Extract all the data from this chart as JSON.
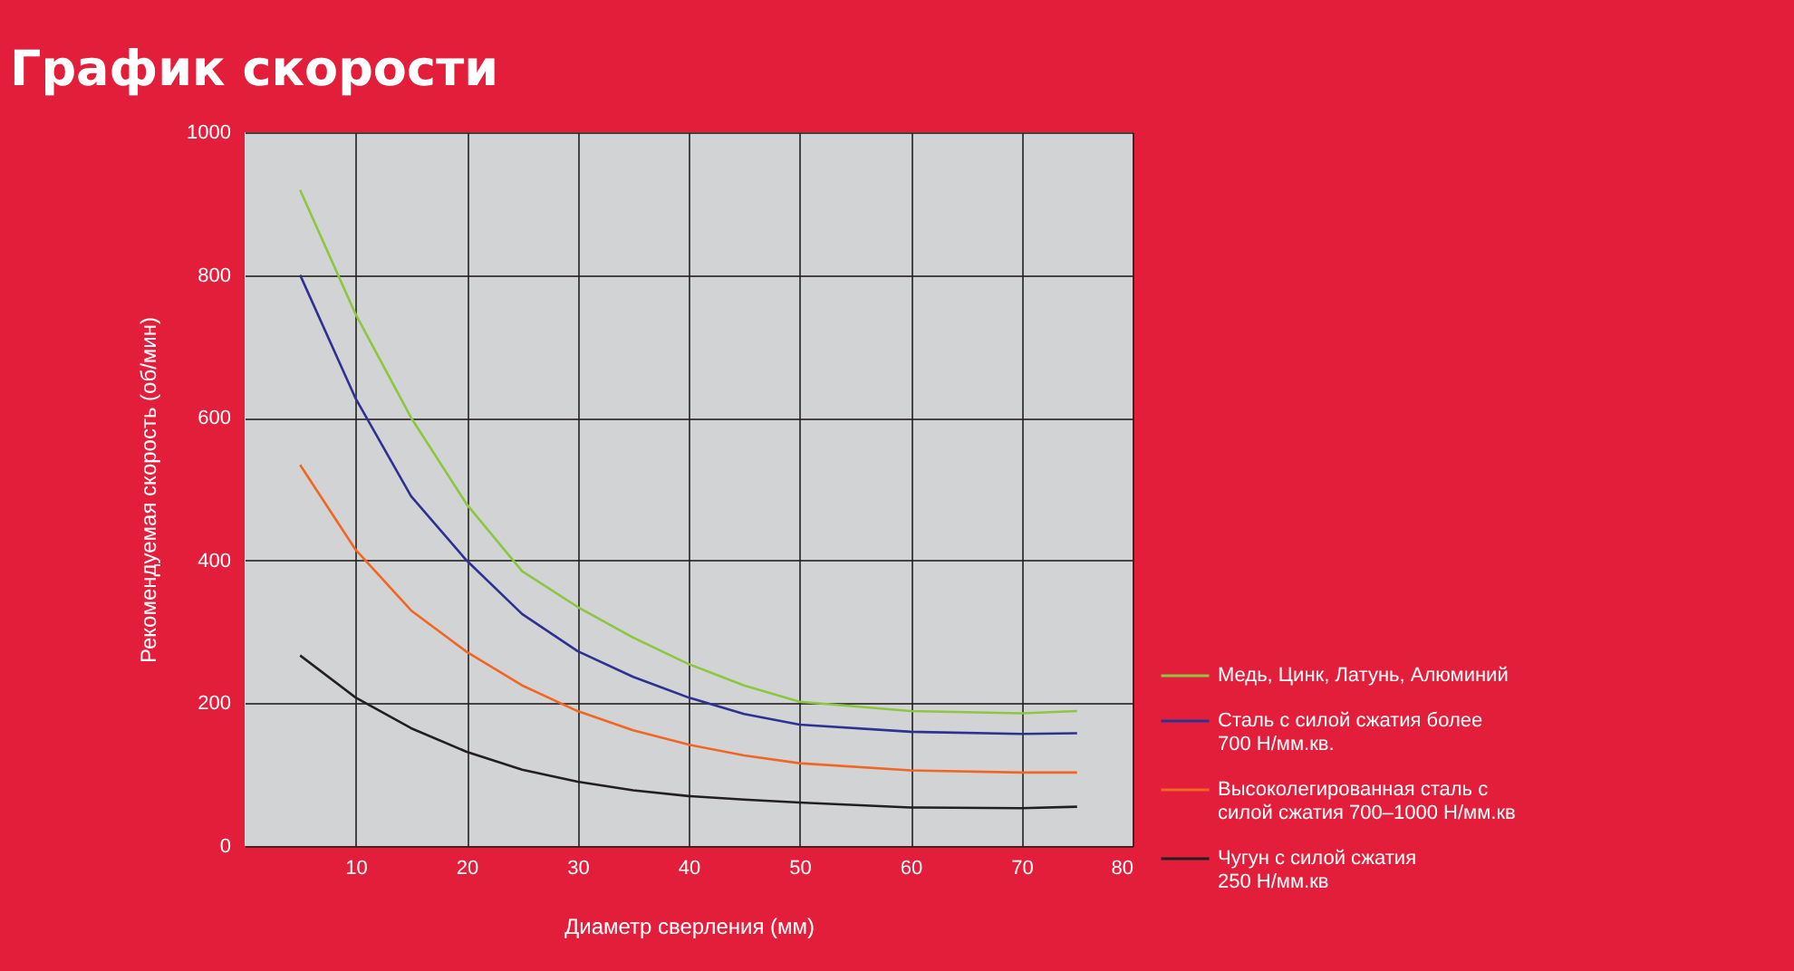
{
  "chart_data": {
    "type": "line",
    "title": "График скорости",
    "xlabel": "Диаметр сверления (мм)",
    "ylabel": "Рекомендуемая скорость (об/мин)",
    "x": [
      5,
      10,
      15,
      20,
      25,
      30,
      35,
      40,
      45,
      50,
      60,
      70,
      75
    ],
    "series": [
      {
        "name": "Медь, Цинк, Латунь, Алюминий",
        "color": "#8dc63f",
        "values": [
          919,
          745,
          600,
          479,
          385,
          335,
          292,
          255,
          225,
          202,
          189,
          186,
          189
        ]
      },
      {
        "name": "Сталь с силой сжатия более\n700 Н/мм.кв.",
        "color": "#2e3192",
        "values": [
          800,
          627,
          490,
          400,
          325,
          273,
          237,
          208,
          185,
          170,
          160,
          157,
          158
        ]
      },
      {
        "name": "Высоколегированная сталь с\nсилой сжатия 700–1000 Н/мм.кв",
        "color": "#f26522",
        "values": [
          534,
          415,
          330,
          272,
          225,
          189,
          162,
          142,
          127,
          116,
          106,
          103,
          103
        ]
      },
      {
        "name": "Чугун с силой сжатия\n250 Н/мм.кв",
        "color": "#231f20",
        "values": [
          267,
          208,
          165,
          132,
          107,
          90,
          78,
          70,
          65,
          61,
          54,
          53,
          55
        ]
      }
    ],
    "xlim": [
      0,
      80
    ],
    "xticks": [
      10,
      20,
      30,
      40,
      50,
      60,
      70,
      80
    ],
    "ylim": [
      0,
      1000
    ],
    "yticks": [
      0,
      200,
      400,
      600,
      800,
      1000
    ],
    "grid": true,
    "legend": "bottom right",
    "marker": "none",
    "line_style": "solid"
  }
}
